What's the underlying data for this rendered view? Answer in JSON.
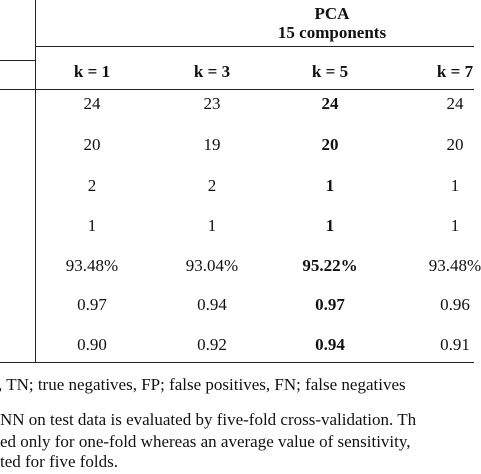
{
  "header": {
    "title": "PCA",
    "subtitle": "15 components"
  },
  "table": {
    "columns": [
      "k = 1",
      "k = 3",
      "k = 5",
      "k = 7"
    ],
    "rows": [
      [
        "24",
        "23",
        "24",
        "24"
      ],
      [
        "20",
        "19",
        "20",
        "20"
      ],
      [
        "2",
        "2",
        "1",
        "1"
      ],
      [
        "1",
        "1",
        "1",
        "1"
      ],
      [
        "93.48%",
        "93.04%",
        "95.22%",
        "93.48%"
      ],
      [
        "0.97",
        "0.94",
        "0.97",
        "0.96"
      ],
      [
        "0.90",
        "0.92",
        "0.94",
        "0.91"
      ]
    ]
  },
  "footnotes": [
    ", TN; true negatives, FP; false positives, FN; false negatives",
    "NN on test data is evaluated by five-fold cross-validation. Th",
    "ed only for one-fold whereas an average value of sensitivity,",
    "ted for five folds."
  ]
}
